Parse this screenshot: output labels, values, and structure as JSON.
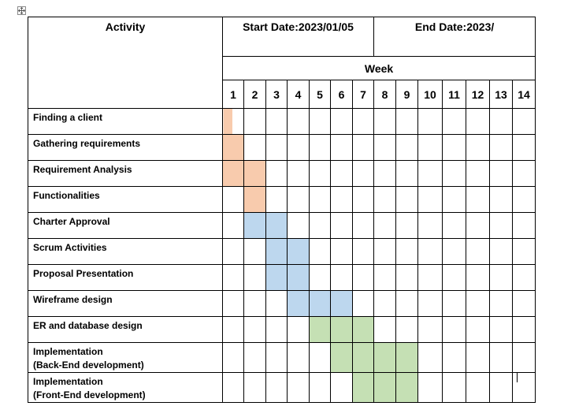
{
  "header": {
    "activity": "Activity",
    "start_date": "Start Date:2023/01/05",
    "end_date": "End Date:2023/",
    "week": "Week"
  },
  "weeks": [
    "1",
    "2",
    "3",
    "4",
    "5",
    "6",
    "7",
    "8",
    "9",
    "10",
    "11",
    "12",
    "13",
    "14"
  ],
  "colors": {
    "orange": "#f8cbad",
    "blue": "#bdd7ee",
    "green": "#c5e0b4"
  },
  "activities": [
    {
      "lines": [
        "Finding a client"
      ],
      "bar": [
        {
          "week": 1,
          "fraction": 0.45,
          "color": "orange"
        }
      ]
    },
    {
      "lines": [
        "Gathering requirements"
      ],
      "bar": [
        {
          "week": 1,
          "fraction": 1,
          "color": "orange"
        }
      ]
    },
    {
      "lines": [
        "Requirement Analysis"
      ],
      "bar": [
        {
          "week": 1,
          "fraction": 1,
          "color": "orange"
        },
        {
          "week": 2,
          "fraction": 1,
          "color": "orange"
        }
      ]
    },
    {
      "lines": [
        "Functionalities"
      ],
      "bar": [
        {
          "week": 2,
          "fraction": 1,
          "color": "orange"
        }
      ]
    },
    {
      "lines": [
        "Charter Approval"
      ],
      "bar": [
        {
          "week": 2,
          "fraction": 1,
          "color": "blue"
        },
        {
          "week": 3,
          "fraction": 1,
          "color": "blue"
        }
      ]
    },
    {
      "lines": [
        "Scrum Activities"
      ],
      "bar": [
        {
          "week": 3,
          "fraction": 1,
          "color": "blue"
        },
        {
          "week": 4,
          "fraction": 1,
          "color": "blue"
        }
      ]
    },
    {
      "lines": [
        "Proposal Presentation"
      ],
      "bar": [
        {
          "week": 3,
          "fraction": 1,
          "color": "blue"
        },
        {
          "week": 4,
          "fraction": 1,
          "color": "blue"
        }
      ]
    },
    {
      "lines": [
        "Wireframe design"
      ],
      "bar": [
        {
          "week": 4,
          "fraction": 1,
          "color": "blue"
        },
        {
          "week": 5,
          "fraction": 1,
          "color": "blue"
        },
        {
          "week": 6,
          "fraction": 1,
          "color": "blue"
        }
      ]
    },
    {
      "lines": [
        "ER and database design"
      ],
      "bar": [
        {
          "week": 5,
          "fraction": 1,
          "color": "green"
        },
        {
          "week": 6,
          "fraction": 1,
          "color": "green"
        },
        {
          "week": 7,
          "fraction": 1,
          "color": "green"
        }
      ]
    },
    {
      "lines": [
        "Implementation",
        "(Back-End development)"
      ],
      "bar": [
        {
          "week": 6,
          "fraction": 1,
          "color": "green"
        },
        {
          "week": 7,
          "fraction": 1,
          "color": "green"
        },
        {
          "week": 8,
          "fraction": 1,
          "color": "green"
        },
        {
          "week": 9,
          "fraction": 1,
          "color": "green"
        }
      ]
    },
    {
      "lines": [
        "Implementation",
        "(Front-End development)"
      ],
      "bar": [
        {
          "week": 7,
          "fraction": 1,
          "color": "green"
        },
        {
          "week": 8,
          "fraction": 1,
          "color": "green"
        },
        {
          "week": 9,
          "fraction": 1,
          "color": "green"
        }
      ]
    }
  ]
}
